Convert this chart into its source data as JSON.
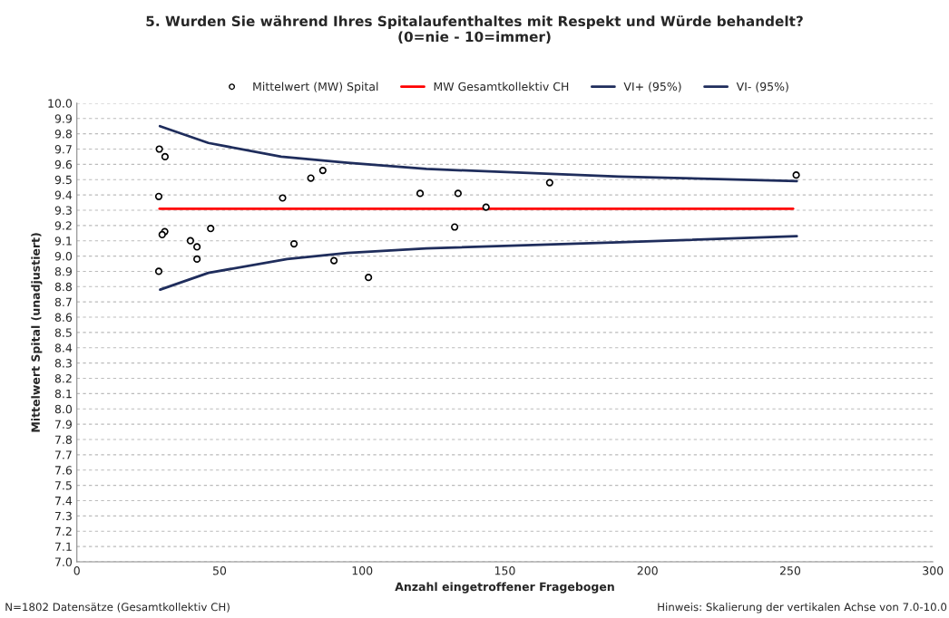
{
  "chart_data": {
    "type": "scatter",
    "title": "5. Wurden Sie während Ihres Spitalaufenthaltes mit Respekt und Würde behandelt?\n(0=nie - 10=immer)",
    "xlabel": "Anzahl eingetroffener Fragebogen",
    "ylabel": "Mittelwert Spital (unadjustiert)",
    "series": [
      {
        "name": "Mittelwert (MW) Spital",
        "marker": "circle",
        "color": "#000000",
        "x": [
          28.9,
          30.9,
          28.7,
          72.1,
          82.0,
          86.2,
          120.3,
          30.8,
          29.9,
          46.9,
          39.8,
          42.1,
          42.1,
          76.1,
          90.1,
          102.2,
          28.7,
          133.6,
          143.4,
          132.4,
          165.7,
          252.1
        ],
        "values": [
          9.7,
          9.65,
          9.39,
          9.38,
          9.51,
          9.56,
          9.41,
          9.16,
          9.14,
          9.18,
          9.1,
          9.06,
          8.98,
          9.08,
          8.97,
          8.86,
          8.9,
          9.41,
          9.32,
          9.19,
          9.48,
          9.53
        ]
      },
      {
        "name": "MW Gesamtkollektiv CH",
        "type": "line",
        "color": "#ff0000",
        "x": [
          29,
          251
        ],
        "values": [
          9.31,
          9.31
        ]
      },
      {
        "name": "VI+ (95%)",
        "type": "line",
        "color": "#1f2d5c",
        "x": [
          29.1,
          46.1,
          71.6,
          94.9,
          122.5,
          190,
          252.3
        ],
        "values": [
          9.85,
          9.74,
          9.65,
          9.61,
          9.57,
          9.52,
          9.49
        ]
      },
      {
        "name": "VI- (95%)",
        "type": "line",
        "color": "#1f2d5c",
        "x": [
          29.2,
          46.1,
          73.7,
          94.8,
          122.5,
          190,
          252.3
        ],
        "values": [
          8.78,
          8.89,
          8.98,
          9.02,
          9.05,
          9.09,
          9.13
        ]
      }
    ],
    "xlim": [
      0,
      300
    ],
    "xticks": [
      0,
      50,
      100,
      150,
      200,
      250,
      300
    ],
    "ylim": [
      7.0,
      10.0
    ],
    "yticks": [
      {
        "value": 7,
        "label": "7.0"
      },
      7.1,
      7.2,
      7.3,
      7.4,
      7.5,
      7.6,
      7.7,
      7.8,
      7.9,
      {
        "value": 8,
        "label": "8.0"
      },
      8.1,
      8.2,
      8.3,
      8.4,
      8.5,
      8.6,
      8.7,
      8.8,
      8.9,
      {
        "value": 9,
        "label": "9.0"
      },
      9.1,
      9.2,
      9.3,
      9.4,
      9.5,
      9.6,
      9.7,
      9.8,
      9.9,
      {
        "value": 10,
        "label": "10.0"
      }
    ],
    "grid": "y",
    "legend": "top",
    "annotations": [
      "N=1802 Datensätze (Gesamtkollektiv CH)",
      "Hinweis: Skalierung der vertikalen Achse von 7.0-10.0"
    ]
  }
}
